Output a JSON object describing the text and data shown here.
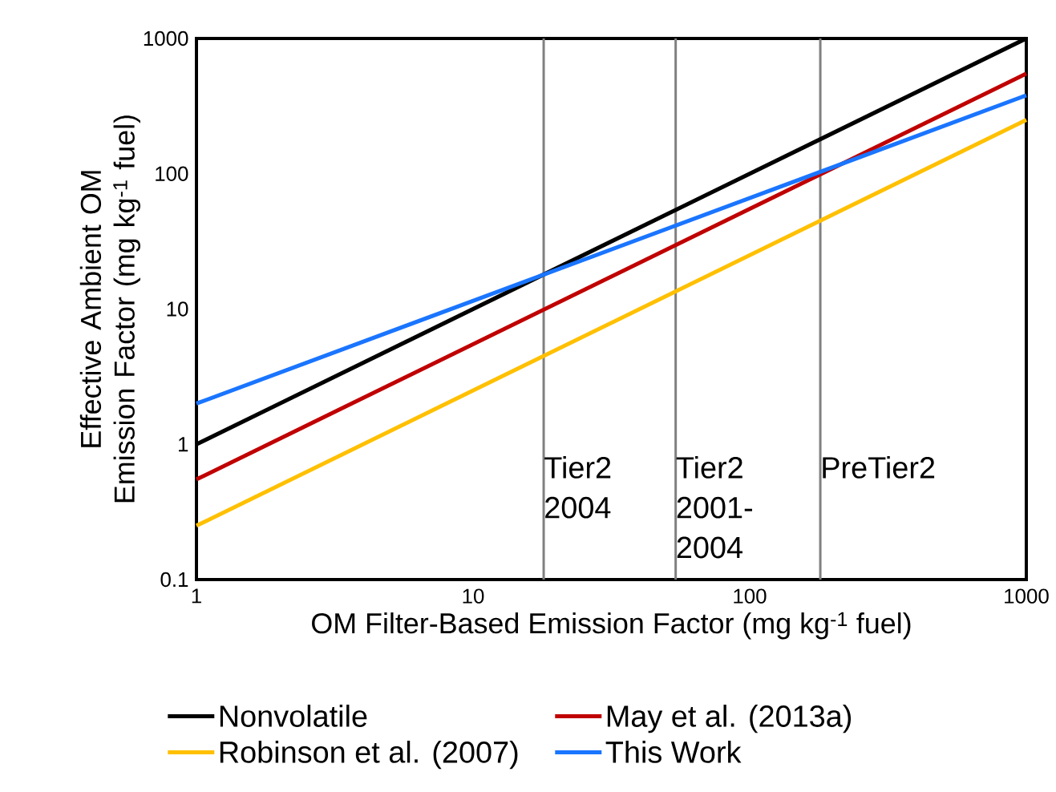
{
  "chart_data": {
    "type": "line",
    "xlabel": "OM Filter-Based Emission Factor (mg kg$^{-1}$ fuel)",
    "ylabel": "Effective Ambient OM Emission Factor (mg kg$^{-1}$ fuel)",
    "log": "xy",
    "xlim": [
      1,
      1000
    ],
    "ylim": [
      0.1,
      1000
    ],
    "xticks": [
      1,
      10,
      100,
      1000
    ],
    "yticks": [
      0.1,
      1,
      10,
      100,
      1000
    ],
    "legend": "bottom",
    "line_style": "solid",
    "marker": "none",
    "grid": false,
    "x": [
      1,
      1000
    ],
    "series": [
      {
        "name": "Nonvolatile",
        "color": "#000000",
        "values": [
          1,
          1000
        ]
      },
      {
        "name": "May et al. (2013a)",
        "color": "#c00000",
        "values": [
          0.55,
          550
        ]
      },
      {
        "name": "Robinson et al. (2007)",
        "color": "#ffc000",
        "values": [
          0.25,
          250
        ]
      },
      {
        "name": "This Work",
        "color": "#1a75ff",
        "values": [
          2,
          380
        ]
      }
    ],
    "ref_lines": [
      {
        "axis": "x",
        "value": 18,
        "label": "Tier2 2004",
        "color": "#808080",
        "line_style": "solid"
      },
      {
        "axis": "x",
        "value": 54,
        "label": "Tier2 2001-2004",
        "color": "#808080",
        "line_style": "solid"
      },
      {
        "axis": "x",
        "value": 180,
        "label": "PreTier2",
        "color": "#808080",
        "line_style": "solid"
      }
    ]
  }
}
